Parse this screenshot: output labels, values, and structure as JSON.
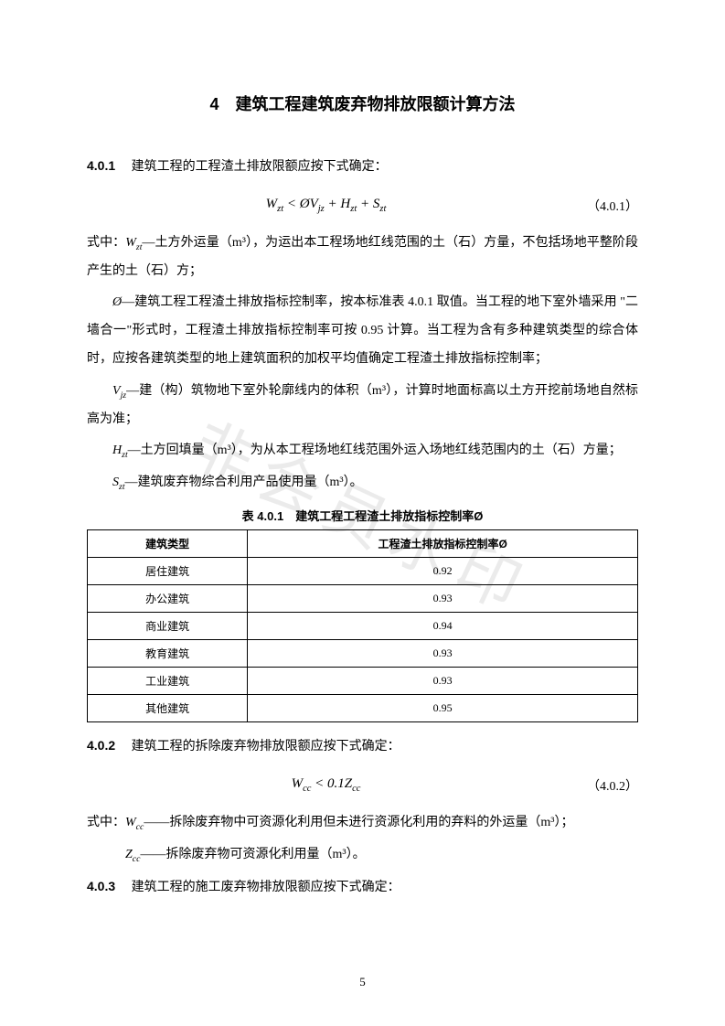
{
  "title": "4　建筑工程建筑废弃物排放限额计算方法",
  "s401_num": "4.0.1",
  "s401_text": "建筑工程的工程渣土排放限额应按下式确定：",
  "formula1": "W",
  "formula1_sub1": "zt",
  "formula1_op1": " < Ø",
  "formula1_v2": "V",
  "formula1_sub2": "jz",
  "formula1_op2": " + ",
  "formula1_v3": "H",
  "formula1_sub3": "zt",
  "formula1_op3": " + ",
  "formula1_v4": "S",
  "formula1_sub4": "zt",
  "formula1_num": "（4.0.1）",
  "def_intro": "式中：",
  "wzt_var": "W",
  "wzt_sub": "zt",
  "wzt_def": "—土方外运量（m³），为运出本工程场地红线范围的土（石）方量，不包括场地平整阶段产生的土（石）方；",
  "phi_var": "Ø",
  "phi_def": "—建筑工程工程渣土排放指标控制率，按本标准表 4.0.1 取值。当工程的地下室外墙采用 \"二墙合一\"形式时，工程渣土排放指标控制率可按 0.95 计算。当工程为含有多种建筑类型的综合体时，应按各建筑类型的地上建筑面积的加权平均值确定工程渣土排放指标控制率；",
  "vjz_var": "V",
  "vjz_sub": "jz",
  "vjz_def": "—建（构）筑物地下室外轮廓线内的体积（m³），计算时地面标高以土方开挖前场地自然标高为准；",
  "hzt_var": "H",
  "hzt_sub": "zt",
  "hzt_def": "—土方回填量（m³），为从本工程场地红线范围外运入场地红线范围内的土（石）方量；",
  "szt_var": "S",
  "szt_sub": "zt",
  "szt_def": "—建筑废弃物综合利用产品使用量（m³）。",
  "table_title": "表 4.0.1　建筑工程工程渣土排放指标控制率Ø",
  "table": {
    "col1": "建筑类型",
    "col2": "工程渣土排放指标控制率Ø",
    "rows": [
      [
        "居住建筑",
        "0.92"
      ],
      [
        "办公建筑",
        "0.93"
      ],
      [
        "商业建筑",
        "0.94"
      ],
      [
        "教育建筑",
        "0.93"
      ],
      [
        "工业建筑",
        "0.93"
      ],
      [
        "其他建筑",
        "0.95"
      ]
    ]
  },
  "s402_num": "4.0.2",
  "s402_text": "建筑工程的拆除废弃物排放限额应按下式确定：",
  "formula2_v1": "W",
  "formula2_sub1": "cc",
  "formula2_op": " < 0.1Z",
  "formula2_sub2": "cc",
  "formula2_num": "（4.0.2）",
  "def_intro2": "式中：",
  "wcc_var": "W",
  "wcc_sub": "cc",
  "wcc_def": "——拆除废弃物中可资源化利用但未进行资源化利用的弃料的外运量（m³）；",
  "zcc_var": "Z",
  "zcc_sub": "cc",
  "zcc_def": "——拆除废弃物可资源化利用量（m³）。",
  "s403_num": "4.0.3",
  "s403_text": "建筑工程的施工废弃物排放限额应按下式确定：",
  "page_num": "5",
  "watermark": "非会员水印"
}
